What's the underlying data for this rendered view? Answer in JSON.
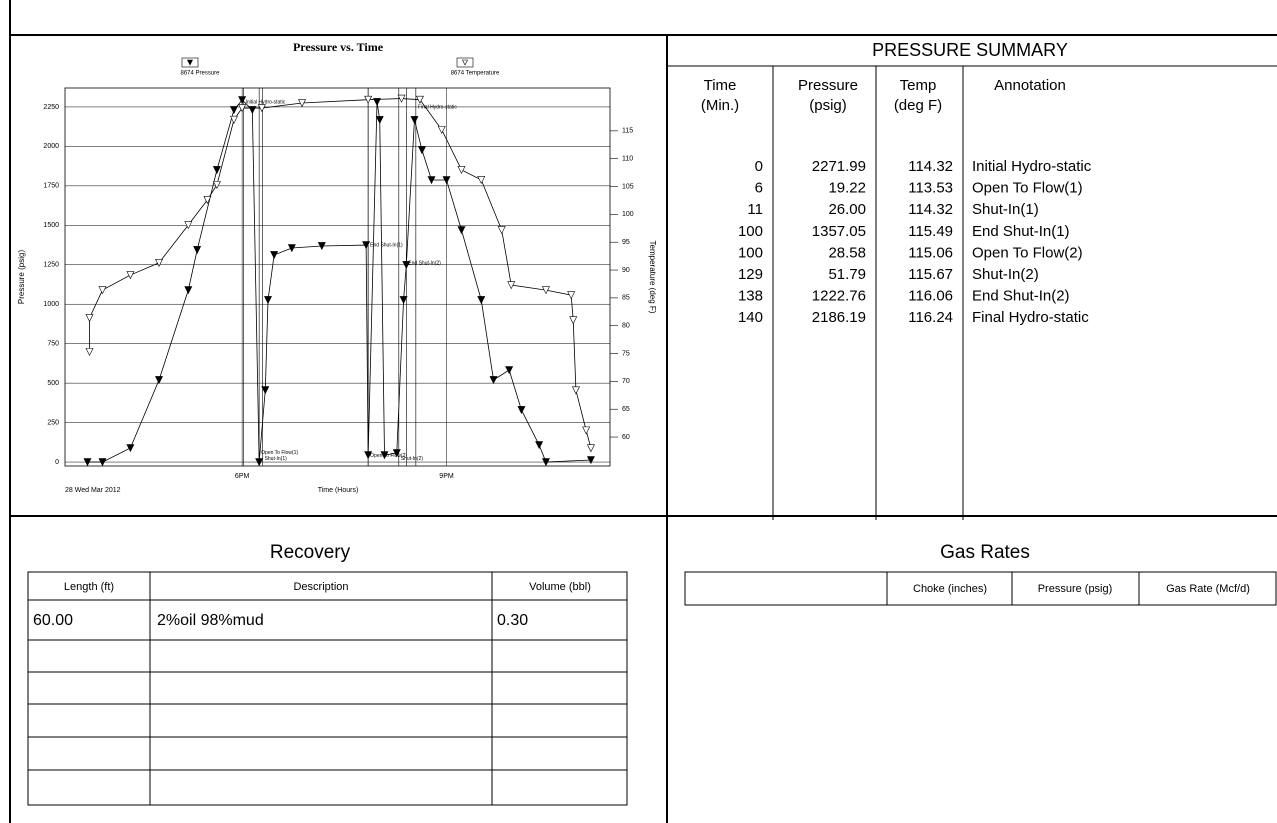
{
  "chart": {
    "type": "line",
    "title": "Pressure vs. Time",
    "x_label": "Time (Hours)",
    "y_label": "Pressure (psig)",
    "y2_label": "Temperature (deg F)",
    "date_label": "28 Wed Mar 2012",
    "xlim": [
      15.4,
      23.4
    ],
    "xticks": [
      {
        "value": 18,
        "label": "6PM"
      },
      {
        "value": 21,
        "label": "9PM"
      }
    ],
    "ylim": [
      -25,
      2370
    ],
    "yticks": [
      0,
      250,
      500,
      750,
      1000,
      1250,
      1500,
      1750,
      2000,
      2250
    ],
    "y2lim": [
      54.8,
      122.7
    ],
    "y2ticks": [
      60,
      65,
      70,
      75,
      80,
      85,
      90,
      95,
      100,
      105,
      110,
      115
    ],
    "grid": true,
    "series": [
      {
        "name": "8674 Pressure",
        "color": "#000000",
        "marker": "filled",
        "x": [
          15.73,
          15.95,
          16.36,
          16.78,
          17.21,
          17.34,
          17.63,
          17.88,
          18.0,
          18.15,
          18.25,
          18.34,
          18.38,
          18.47,
          18.73,
          19.17,
          19.82,
          19.85,
          19.98,
          20.02,
          20.09,
          20.27,
          20.37,
          20.41,
          20.53,
          20.64,
          20.78,
          21.0,
          21.22,
          21.51,
          21.69,
          21.92,
          22.1,
          22.36,
          22.46,
          23.12
        ],
        "values": [
          0,
          0,
          89,
          520,
          1090,
          1344,
          1851,
          2231,
          2294,
          2231,
          0,
          456,
          1027,
          1312,
          1356,
          1369,
          1375,
          44,
          2282,
          2168,
          44,
          57,
          1027,
          1249,
          2168,
          1977,
          1787,
          1787,
          1470,
          1027,
          520,
          583,
          330,
          108,
          0,
          13
        ]
      },
      {
        "name": "8674 Temperature",
        "color": "#000000",
        "marker": "hollow",
        "axis": "y2",
        "x": [
          15.76,
          15.76,
          15.95,
          16.36,
          16.78,
          17.21,
          17.49,
          17.63,
          17.88,
          18.0,
          18.29,
          18.88,
          19.85,
          20.34,
          20.61,
          20.93,
          21.22,
          21.51,
          21.81,
          21.95,
          22.46,
          22.83,
          22.86,
          22.9,
          23.05,
          23.12
        ],
        "values": [
          75.3,
          81.4,
          86.4,
          89.1,
          91.3,
          98.1,
          102.6,
          105.3,
          117.0,
          119.1,
          119.1,
          120.0,
          120.6,
          120.8,
          120.6,
          115.2,
          108.0,
          106.2,
          97.2,
          87.3,
          86.4,
          85.5,
          81.0,
          68.4,
          61.2,
          58.0
        ]
      }
    ],
    "annotations": [
      {
        "text": "Initial Hydro-static",
        "x": 18.02,
        "y": 2280
      },
      {
        "text": "Open To Flow(1)",
        "x": 18.25,
        "y": 60
      },
      {
        "text": "Shut-In(1)",
        "x": 18.3,
        "y": 20
      },
      {
        "text": "End Shut-In(1)",
        "x": 19.85,
        "y": 1375
      },
      {
        "text": "Open To Flow(2)",
        "x": 19.85,
        "y": 40
      },
      {
        "text": "Shut-In(2)",
        "x": 20.3,
        "y": 20
      },
      {
        "text": "End Shut-In(2)",
        "x": 20.41,
        "y": 1260
      },
      {
        "text": "Final Hydro-static",
        "x": 20.55,
        "y": 2250
      }
    ]
  },
  "summary": {
    "title": "PRESSURE SUMMARY",
    "headers": [
      [
        "Time",
        "(Min.)"
      ],
      [
        "Pressure",
        "(psig)"
      ],
      [
        "Temp",
        "(deg F)"
      ],
      [
        "Annotation"
      ]
    ],
    "rows": [
      [
        "0",
        "2271.99",
        "114.32",
        "Initial Hydro-static"
      ],
      [
        "6",
        "19.22",
        "113.53",
        "Open To Flow(1)"
      ],
      [
        "11",
        "26.00",
        "114.32",
        "Shut-In(1)"
      ],
      [
        "100",
        "1357.05",
        "115.49",
        "End Shut-In(1)"
      ],
      [
        "100",
        "28.58",
        "115.06",
        "Open To Flow(2)"
      ],
      [
        "129",
        "51.79",
        "115.67",
        "Shut-In(2)"
      ],
      [
        "138",
        "1222.76",
        "116.06",
        "End Shut-In(2)"
      ],
      [
        "140",
        "2186.19",
        "116.24",
        "Final Hydro-static"
      ]
    ]
  },
  "recovery": {
    "title": "Recovery",
    "headers": [
      "Length (ft)",
      "Description",
      "Volume (bbl)"
    ],
    "rows": [
      [
        "60.00",
        "2%oil 98%mud",
        "0.30"
      ]
    ]
  },
  "gas_rates": {
    "title": "Gas Rates",
    "headers": [
      "Choke (inches)",
      "Pressure (psig)",
      "Gas Rate (Mcf/d)"
    ]
  }
}
